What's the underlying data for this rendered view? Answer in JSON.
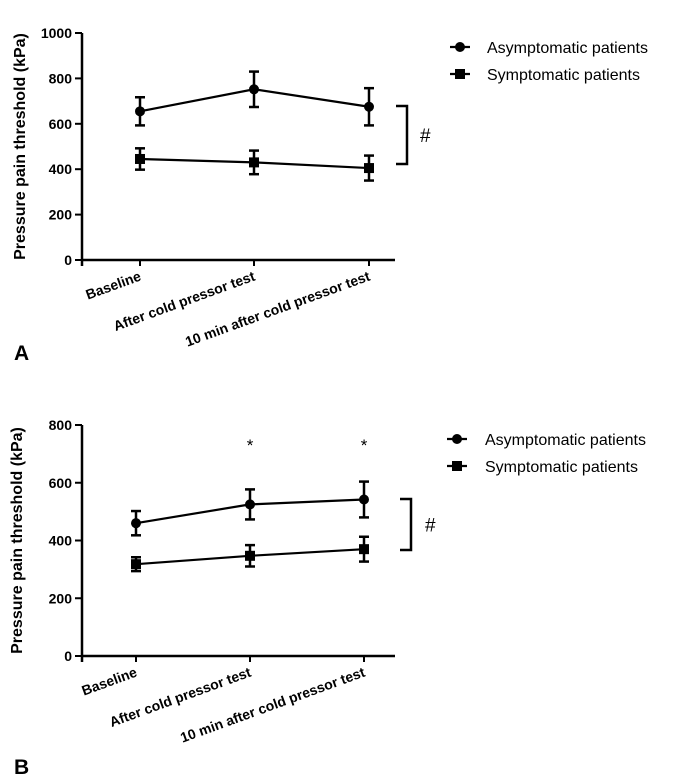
{
  "chart_data": [
    {
      "panel_label": "A",
      "type": "line",
      "ylabel": "Pressure pain threshold  (kPa)",
      "ylim": [
        0,
        1000
      ],
      "yticks": [
        0,
        200,
        400,
        600,
        800,
        1000
      ],
      "grid": false,
      "legend_position": "top-right",
      "categories": [
        "Baseline",
        "After cold pressor test",
        "10 min after cold pressor test"
      ],
      "series": [
        {
          "name": "Asymptomatic patients",
          "marker": "circle",
          "values": [
            655,
            752,
            675
          ],
          "errors": [
            62,
            78,
            82
          ]
        },
        {
          "name": "Symptomatic patients",
          "marker": "square",
          "values": [
            445,
            430,
            405
          ],
          "errors": [
            47,
            52,
            55
          ]
        }
      ],
      "annotations": {
        "significance_bracket": "#",
        "stars": [
          "",
          "",
          ""
        ]
      }
    },
    {
      "panel_label": "B",
      "type": "line",
      "ylabel": "Pressure pain threshold  (kPa)",
      "ylim": [
        0,
        800
      ],
      "yticks": [
        0,
        200,
        400,
        600,
        800
      ],
      "grid": false,
      "legend_position": "top-right",
      "categories": [
        "Baseline",
        "After cold pressor test",
        "10 min after cold pressor test"
      ],
      "series": [
        {
          "name": "Asymptomatic patients",
          "marker": "circle",
          "values": [
            460,
            525,
            542
          ],
          "errors": [
            42,
            52,
            62
          ]
        },
        {
          "name": "Symptomatic patients",
          "marker": "square",
          "values": [
            318,
            347,
            370
          ],
          "errors": [
            24,
            37,
            43
          ]
        }
      ],
      "annotations": {
        "significance_bracket": "#",
        "stars": [
          "",
          "*",
          "*"
        ]
      }
    }
  ]
}
